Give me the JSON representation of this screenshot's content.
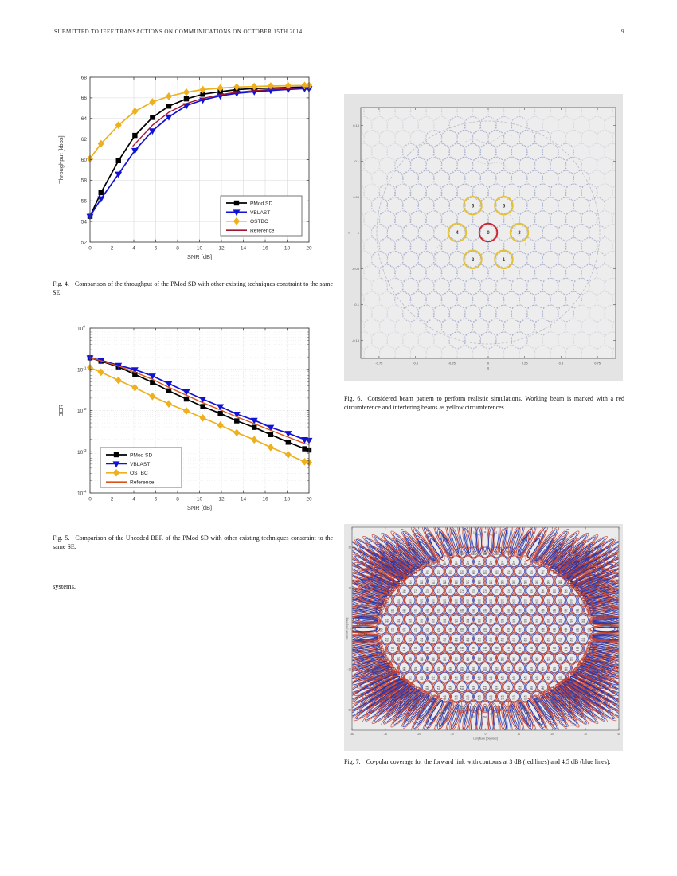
{
  "page": {
    "header_left": "SUBMITTED TO IEEE TRANSACTIONS ON COMMUNICATIONS ON OCTOBER 15TH 2014",
    "page_number": "9"
  },
  "body_text": "systems.",
  "fig4": {
    "label": "Fig. 4.",
    "caption": "Comparison of the throughput of the PMod SD with other existing techniques constraint to the same SE."
  },
  "fig5": {
    "label": "Fig. 5.",
    "caption": "Comparison of the Uncoded BER of the PMod SD with other existing techniques constraint to the same SE."
  },
  "fig6": {
    "label": "Fig. 6.",
    "caption": "Considered beam pattern to perform realistic simulations. Working beam is marked with a red circumference and interfering beams as yellow circumferences.",
    "bg": "#e4e4e4",
    "plot_bg": "#ededed",
    "beam_color": "#9aa2c6",
    "outer_beam_color": "#cfd0d8",
    "earth_color": "#b9bcc9",
    "map_color": "#8d94b0",
    "working_beam": {
      "label": "0",
      "color": "#cc2331",
      "dc": 0,
      "dr": 0
    },
    "interfering_color": "#e4c235",
    "interfering_beams": [
      {
        "label": "6",
        "dc": -1,
        "dr": -2
      },
      {
        "label": "5",
        "dc": 1,
        "dr": -2
      },
      {
        "label": "4",
        "dc": -2,
        "dr": 0
      },
      {
        "label": "3",
        "dc": 2,
        "dr": 0
      },
      {
        "label": "2",
        "dc": -1,
        "dr": 2
      },
      {
        "label": "1",
        "dc": 1,
        "dr": 2
      }
    ],
    "x_ticks": [
      "-0.75",
      "-0.5",
      "-0.25",
      "0",
      "0.25",
      "0.5",
      "0.75"
    ],
    "y_ticks": [
      "0.15",
      "0.1",
      "0.05",
      "0",
      "-0.05",
      "-0.1",
      "-0.15"
    ],
    "xlabel": "u",
    "ylabel": "v"
  },
  "fig7": {
    "label": "Fig. 7.",
    "caption": "Co-polar coverage for the forward link with contours at 3 dB (red lines) and 4.5 dB (blue lines).",
    "bg": "#e6e6e6",
    "plot_bg": "#ebebeb",
    "red": "#c8402e",
    "blue": "#2036b0",
    "map_color": "#9aa0ae",
    "x_ticks": [
      "-40",
      "-30",
      "-20",
      "-10",
      "0",
      "10",
      "20",
      "30",
      "40"
    ],
    "y_ticks": [
      "20",
      "10",
      "0",
      "-10",
      "-20"
    ],
    "xlabel": "Longitude [Degrees]",
    "ylabel": "Latitude [Degrees]"
  },
  "chart_data": [
    {
      "type": "line",
      "title": "",
      "xlabel": "SNR [dB]",
      "ylabel": "Throughput [kbps]",
      "xlim": [
        0,
        20
      ],
      "ylim": [
        52,
        68
      ],
      "xticks": [
        0,
        2,
        4,
        6,
        8,
        10,
        12,
        14,
        16,
        18,
        20
      ],
      "yticks": [
        52,
        54,
        56,
        58,
        60,
        62,
        64,
        66,
        68
      ],
      "grid": true,
      "legend_position": "bottom-right",
      "x": [
        0,
        1,
        2.6,
        4.1,
        5.7,
        7.2,
        8.8,
        10.3,
        11.9,
        13.4,
        15,
        16.5,
        18.1,
        19.6,
        20
      ],
      "series": [
        {
          "name": "PMod SD",
          "color": "#000000",
          "marker": "square",
          "y": [
            54.5,
            56.8,
            59.9,
            62.35,
            64.1,
            65.2,
            65.9,
            66.35,
            66.6,
            66.8,
            66.9,
            66.95,
            67.0,
            67.05,
            67.05
          ]
        },
        {
          "name": "VBLAST",
          "color": "#1212d6",
          "marker": "triangle-down",
          "y": [
            54.5,
            56.2,
            58.6,
            60.9,
            62.8,
            64.15,
            65.25,
            65.8,
            66.2,
            66.45,
            66.6,
            66.72,
            66.82,
            66.9,
            66.9
          ]
        },
        {
          "name": "OSTBC",
          "color": "#edb120",
          "marker": "diamond",
          "y": [
            60.1,
            61.55,
            63.35,
            64.7,
            65.6,
            66.15,
            66.55,
            66.8,
            66.95,
            67.05,
            67.1,
            67.15,
            67.18,
            67.2,
            67.2
          ]
        },
        {
          "name": "Reference",
          "color": "#a2142f",
          "marker": "none",
          "x_override": [
            3.9,
            5.7,
            7.2,
            8.8,
            10.3,
            11.9,
            13.4,
            15,
            16.5,
            18.1,
            19.6,
            20
          ],
          "y": [
            61.3,
            63.35,
            64.6,
            65.45,
            65.95,
            66.3,
            66.55,
            66.7,
            66.82,
            66.9,
            66.97,
            67.0
          ]
        }
      ]
    },
    {
      "type": "line",
      "title": "",
      "xlabel": "SNR [dB]",
      "ylabel": "BER",
      "yscale": "log",
      "xlim": [
        0,
        20
      ],
      "ylim": [
        0.0001,
        1
      ],
      "xticks": [
        0,
        2,
        4,
        6,
        8,
        10,
        12,
        14,
        16,
        18,
        20
      ],
      "yticks_log_exponents": [
        0,
        -1,
        -2,
        -3,
        -4
      ],
      "grid": true,
      "legend_position": "bottom-left",
      "x": [
        0,
        1,
        2.6,
        4.1,
        5.7,
        7.2,
        8.8,
        10.3,
        11.9,
        13.4,
        15,
        16.5,
        18.1,
        19.6,
        20
      ],
      "series": [
        {
          "name": "PMod SD",
          "color": "#000000",
          "marker": "square",
          "y": [
            0.19,
            0.158,
            0.115,
            0.075,
            0.048,
            0.03,
            0.019,
            0.0125,
            0.0085,
            0.0056,
            0.0039,
            0.0026,
            0.0017,
            0.00118,
            0.0011
          ]
        },
        {
          "name": "VBLAST",
          "color": "#1212d6",
          "marker": "triangle-down",
          "y": [
            0.19,
            0.165,
            0.125,
            0.098,
            0.069,
            0.045,
            0.0285,
            0.019,
            0.0125,
            0.0082,
            0.0058,
            0.0039,
            0.0028,
            0.00197,
            0.0019
          ]
        },
        {
          "name": "OSTBC",
          "color": "#edb120",
          "marker": "diamond",
          "y": [
            0.11,
            0.085,
            0.054,
            0.036,
            0.022,
            0.0145,
            0.0098,
            0.0066,
            0.0044,
            0.0029,
            0.00195,
            0.00128,
            0.00085,
            0.00057,
            0.00055
          ]
        },
        {
          "name": "Reference",
          "color": "#d95319",
          "marker": "none",
          "y": [
            0.19,
            0.161,
            0.12,
            0.085,
            0.057,
            0.0365,
            0.0235,
            0.0155,
            0.0104,
            0.007,
            0.0048,
            0.0033,
            0.00225,
            0.00158,
            0.0015
          ]
        }
      ]
    }
  ]
}
